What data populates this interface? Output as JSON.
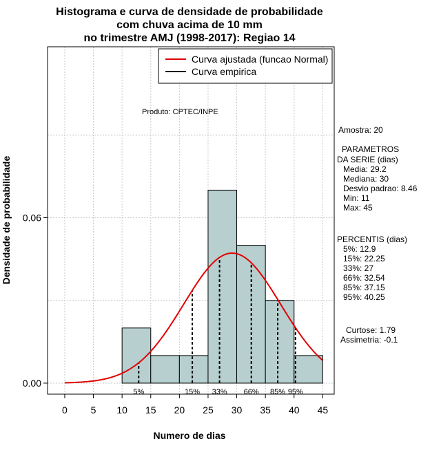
{
  "chart_data": {
    "type": "bar",
    "title_lines": [
      "Histograma e curva de densidade de probabilidade",
      "com chuva acima de 10 mm",
      "no trimestre AMJ (1998-2017): Regiao 14"
    ],
    "xlabel": "Numero de dias",
    "ylabel": "Densidade de probabilidade",
    "xlim": [
      -3,
      47
    ],
    "ylim": [
      -0.004,
      0.122
    ],
    "x_ticks": [
      0,
      5,
      10,
      15,
      20,
      25,
      30,
      35,
      40,
      45
    ],
    "y_ticks": [
      0.0,
      0.06
    ],
    "y_tick_labels": [
      "0.00",
      "0.06"
    ],
    "grid": true,
    "bar_color": "#b7cfcf",
    "curve_color": "#e00000",
    "bins": [
      {
        "x0": 10,
        "x1": 15,
        "density": 0.02
      },
      {
        "x0": 15,
        "x1": 20,
        "density": 0.01
      },
      {
        "x0": 20,
        "x1": 25,
        "density": 0.01
      },
      {
        "x0": 25,
        "x1": 30,
        "density": 0.07
      },
      {
        "x0": 30,
        "x1": 35,
        "density": 0.05
      },
      {
        "x0": 35,
        "x1": 40,
        "density": 0.03
      },
      {
        "x0": 40,
        "x1": 45,
        "density": 0.01
      }
    ],
    "normal_fit": {
      "mean": 29.2,
      "sd": 8.46,
      "x_range": [
        0,
        45
      ]
    },
    "percentile_marks": [
      {
        "label": "5%",
        "x": 12.9
      },
      {
        "label": "15%",
        "x": 22.25
      },
      {
        "label": "33%",
        "x": 27
      },
      {
        "label": "66%",
        "x": 32.54
      },
      {
        "label": "85%",
        "x": 37.15
      },
      {
        "label": "95%",
        "x": 40.25
      }
    ],
    "legend": {
      "placement": "top-right",
      "entries": [
        {
          "label": "Curva ajustada (funcao Normal)",
          "color": "#e00000"
        },
        {
          "label": "Curva empirica",
          "color": "#000000"
        }
      ]
    },
    "annotation": "Produto: CPTEC/INPE"
  },
  "stats_panel": {
    "amostra": "Amostra: 20",
    "param_header_1": "PARAMETROS",
    "param_header_2": "DA SERIE (dias)",
    "media": "Media: 29.2",
    "mediana": "Mediana: 30",
    "desvio": "Desvio padrao: 8.46",
    "min": "Min: 11",
    "max": "Max: 45",
    "percentis_header": "PERCENTIS (dias)",
    "p5": "5%: 12.9",
    "p15": "15%: 22.25",
    "p33": "33%: 27",
    "p66": "66%: 32.54",
    "p85": "85%: 37.15",
    "p95": "95%: 40.25",
    "curtose": "Curtose: 1.79",
    "assimetria": "Assimetria: -0.1"
  }
}
